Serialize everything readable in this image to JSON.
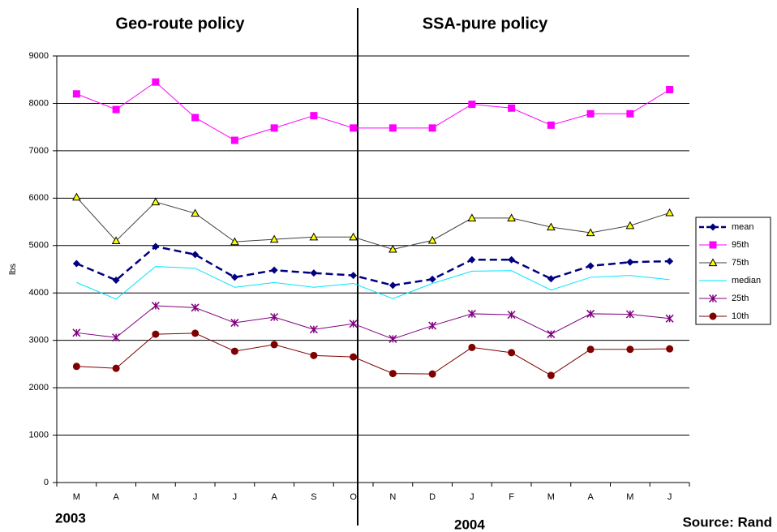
{
  "chart_data": {
    "type": "line",
    "titles": [
      "Geo-route policy",
      "SSA-pure policy"
    ],
    "ylabel": "lbs",
    "years": [
      "2003",
      "2004"
    ],
    "source": "Source: Rand",
    "categories": [
      "M",
      "A",
      "M",
      "J",
      "J",
      "A",
      "S",
      "O",
      "N",
      "D",
      "J",
      "F",
      "M",
      "A",
      "M",
      "J"
    ],
    "ylim": [
      0,
      9000
    ],
    "yticks": [
      0,
      1000,
      2000,
      3000,
      4000,
      5000,
      6000,
      7000,
      8000,
      9000
    ],
    "grid": true,
    "legend": "right",
    "series": [
      {
        "name": "mean",
        "color": "#000080",
        "marker": "diamond",
        "marker_color": "#000080",
        "dash": true,
        "values": [
          4620,
          4270,
          4980,
          4810,
          4330,
          4480,
          4420,
          4370,
          4160,
          4290,
          4700,
          4700,
          4300,
          4570,
          4650,
          4670
        ]
      },
      {
        "name": "95th",
        "color": "#ff00ff",
        "marker": "square",
        "marker_color": "#ff00ff",
        "values": [
          8200,
          7870,
          8450,
          7700,
          7220,
          7480,
          7740,
          7480,
          7480,
          7480,
          7980,
          7900,
          7540,
          7780,
          7780,
          8290
        ]
      },
      {
        "name": "75th",
        "color": "#404040",
        "marker": "triangle",
        "marker_color": "#ffff00",
        "values": [
          6020,
          5100,
          5920,
          5680,
          5080,
          5130,
          5180,
          5180,
          4920,
          5110,
          5580,
          5580,
          5390,
          5270,
          5420,
          5690
        ]
      },
      {
        "name": "median",
        "color": "#00e5ff",
        "marker": "none",
        "values": [
          4220,
          3870,
          4560,
          4520,
          4120,
          4220,
          4120,
          4200,
          3880,
          4200,
          4460,
          4470,
          4060,
          4330,
          4370,
          4280
        ]
      },
      {
        "name": "25th",
        "color": "#800080",
        "marker": "star",
        "marker_color": "#800080",
        "values": [
          3160,
          3060,
          3730,
          3690,
          3370,
          3490,
          3230,
          3350,
          3030,
          3310,
          3560,
          3540,
          3130,
          3560,
          3550,
          3460
        ]
      },
      {
        "name": "10th",
        "color": "#800000",
        "marker": "circle",
        "marker_color": "#800000",
        "values": [
          2450,
          2410,
          3130,
          3150,
          2770,
          2910,
          2680,
          2650,
          2300,
          2290,
          2850,
          2740,
          2260,
          2810,
          2810,
          2820
        ]
      }
    ]
  }
}
